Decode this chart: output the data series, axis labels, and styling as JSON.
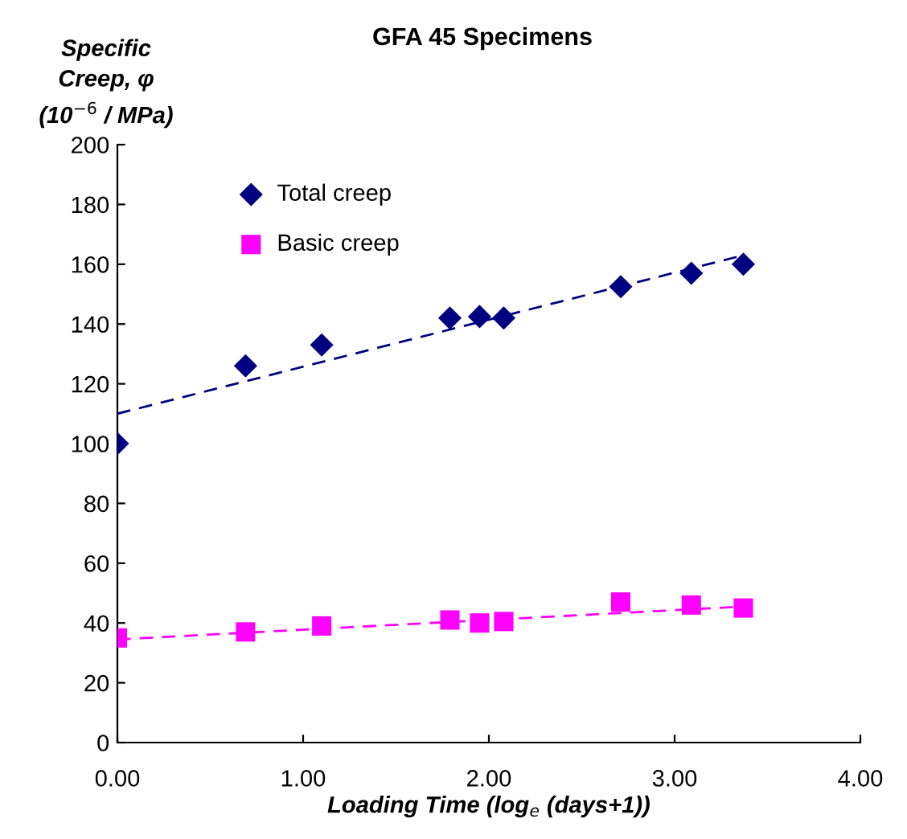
{
  "chart_data": {
    "type": "scatter",
    "title": "GFA 45 Specimens",
    "xlabel": "Loading Time (log$_{e}$ (days+1))",
    "ylabel": "Specific\nCreep, φ\n(10$^{−6}$ / MPa)",
    "series": [
      {
        "name": "Total creep",
        "color": "#000080",
        "marker": "diamond",
        "x": [
          0,
          0.69,
          1.1,
          1.79,
          1.95,
          2.08,
          2.71,
          3.09,
          3.37
        ],
        "values": [
          100,
          126,
          133,
          142,
          142.5,
          142,
          152.5,
          157,
          160
        ]
      },
      {
        "name": "Basic creep",
        "color": "#ff00ff",
        "marker": "square",
        "x": [
          0,
          0.69,
          1.1,
          1.79,
          1.95,
          2.08,
          2.71,
          3.09,
          3.37
        ],
        "values": [
          35,
          37,
          39,
          41,
          40,
          40.5,
          47,
          46,
          45
        ]
      },
      {
        "type": "line",
        "color": "#000080",
        "line_style": "dashed",
        "x": [
          0,
          3.37
        ],
        "values": [
          110,
          163
        ]
      },
      {
        "type": "line",
        "color": "#ff00ff",
        "line_style": "dashed",
        "x": [
          0,
          3.37
        ],
        "values": [
          34.5,
          45.5
        ]
      }
    ],
    "xlim": [
      0,
      4
    ],
    "ylim": [
      0,
      200
    ],
    "xticks": [
      {
        "value": 0,
        "label": "0.00"
      },
      {
        "value": 1,
        "label": "1.00"
      },
      {
        "value": 2,
        "label": "2.00"
      },
      {
        "value": 3,
        "label": "3.00"
      },
      {
        "value": 4,
        "label": "4.00"
      }
    ],
    "yticks": [
      0,
      20,
      40,
      60,
      80,
      100,
      120,
      140,
      160,
      180,
      200
    ],
    "grid": false,
    "legend": "top left"
  }
}
